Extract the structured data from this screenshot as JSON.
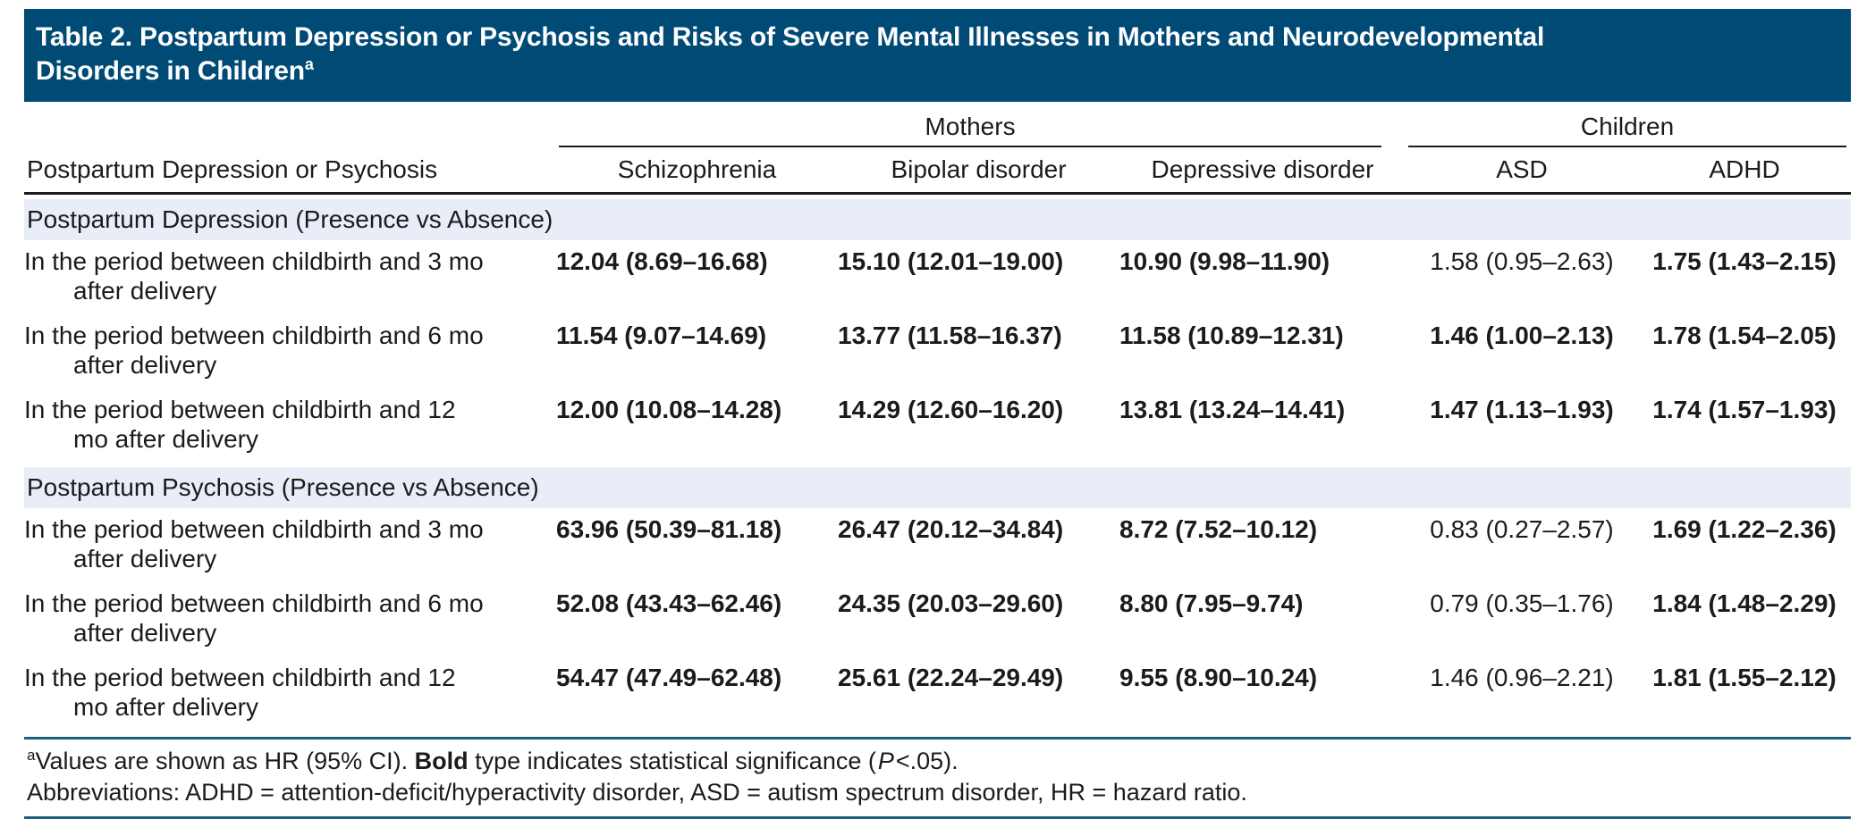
{
  "table": {
    "title_line1": "Table 2. Postpartum Depression or Psychosis and Risks of Severe Mental Illnesses in Mothers and Neurodevelopmental",
    "title_line2": "Disorders in Children",
    "title_superscript": "a",
    "stub_header": "Postpartum Depression or Psychosis",
    "column_groups": [
      {
        "label": "Mothers",
        "span": 3
      },
      {
        "label": "Children",
        "span": 2
      }
    ],
    "columns": [
      "Schizophrenia",
      "Bipolar disorder",
      "Depressive disorder",
      "ASD",
      "ADHD"
    ],
    "sections": [
      {
        "header": "Postpartum Depression (Presence vs Absence)",
        "rows": [
          {
            "label_line1": "In the period between childbirth and 3 mo",
            "label_line2": "after delivery",
            "values": [
              "12.04 (8.69–16.68)",
              "15.10 (12.01–19.00)",
              "10.90 (9.98–11.90)",
              "1.58 (0.95–2.63)",
              "1.75 (1.43–2.15)"
            ],
            "bold": [
              true,
              true,
              true,
              false,
              true
            ]
          },
          {
            "label_line1": "In the period between childbirth and 6 mo",
            "label_line2": "after delivery",
            "values": [
              "11.54 (9.07–14.69)",
              "13.77 (11.58–16.37)",
              "11.58 (10.89–12.31)",
              "1.46 (1.00–2.13)",
              "1.78 (1.54–2.05)"
            ],
            "bold": [
              true,
              true,
              true,
              true,
              true
            ]
          },
          {
            "label_line1": "In the period between childbirth and 12",
            "label_line2": "mo after delivery",
            "values": [
              "12.00 (10.08–14.28)",
              "14.29 (12.60–16.20)",
              "13.81 (13.24–14.41)",
              "1.47 (1.13–1.93)",
              "1.74 (1.57–1.93)"
            ],
            "bold": [
              true,
              true,
              true,
              true,
              true
            ]
          }
        ]
      },
      {
        "header": "Postpartum Psychosis (Presence vs Absence)",
        "rows": [
          {
            "label_line1": "In the period between childbirth and 3 mo",
            "label_line2": "after delivery",
            "values": [
              "63.96 (50.39–81.18)",
              "26.47 (20.12–34.84)",
              "8.72 (7.52–10.12)",
              "0.83 (0.27–2.57)",
              "1.69 (1.22–2.36)"
            ],
            "bold": [
              true,
              true,
              true,
              false,
              true
            ]
          },
          {
            "label_line1": "In the period between childbirth and 6 mo",
            "label_line2": "after delivery",
            "values": [
              "52.08 (43.43–62.46)",
              "24.35 (20.03–29.60)",
              "8.80 (7.95–9.74)",
              "0.79 (0.35–1.76)",
              "1.84 (1.48–2.29)"
            ],
            "bold": [
              true,
              true,
              true,
              false,
              true
            ]
          },
          {
            "label_line1": "In the period between childbirth and 12",
            "label_line2": "mo after delivery",
            "values": [
              "54.47 (47.49–62.48)",
              "25.61 (22.24–29.49)",
              "9.55 (8.90–10.24)",
              "1.46 (0.96–2.21)",
              "1.81 (1.55–2.12)"
            ],
            "bold": [
              true,
              true,
              true,
              false,
              true
            ]
          }
        ]
      }
    ],
    "footnotes": {
      "fn1_sup": "a",
      "fn1_text1": "Values are shown as HR (95% CI). ",
      "fn1_bold": "Bold",
      "fn1_text2": " type indicates statistical significance (",
      "fn1_italic": "P",
      "fn1_text3": "<.05).",
      "fn2": "Abbreviations: ADHD = attention-deficit/hyperactivity disorder, ASD = autism spectrum disorder, HR = hazard ratio."
    },
    "colors": {
      "title_bar_background": "#004A76",
      "title_text": "#FFFFFF",
      "section_band_background": "#E8EDF8",
      "footnote_rule_blue": "#1E5F7F",
      "header_rule_black": "#1B1B1B"
    }
  }
}
